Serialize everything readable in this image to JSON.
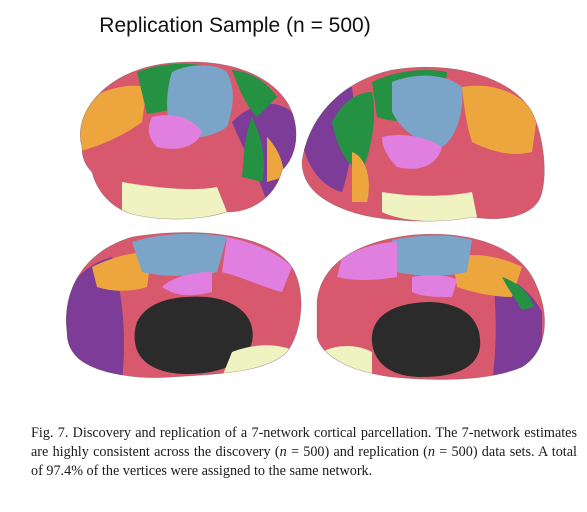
{
  "header": {
    "title": "Replication Sample (n = 500)"
  },
  "colors": {
    "visual": "#7d3c98",
    "somatomotor": "#7ba4c9",
    "dorsal_attention": "#249143",
    "ventral_attention": "#e07fe0",
    "limbic": "#eff3c1",
    "frontoparietal": "#eda63d",
    "default": "#d8596e",
    "medial_wall": "#2b2b2b"
  },
  "caption": {
    "label": "Fig. 7.",
    "text_1": " Discovery and replication of a 7-network cortical parcellation. The 7-network estimates are highly consistent across the discovery (",
    "n1": "n",
    "eq1": " = 500) and replication (",
    "n2": "n",
    "eq2": " = 500) data sets. A total of 97.4% of the vertices were assigned to the same network."
  }
}
